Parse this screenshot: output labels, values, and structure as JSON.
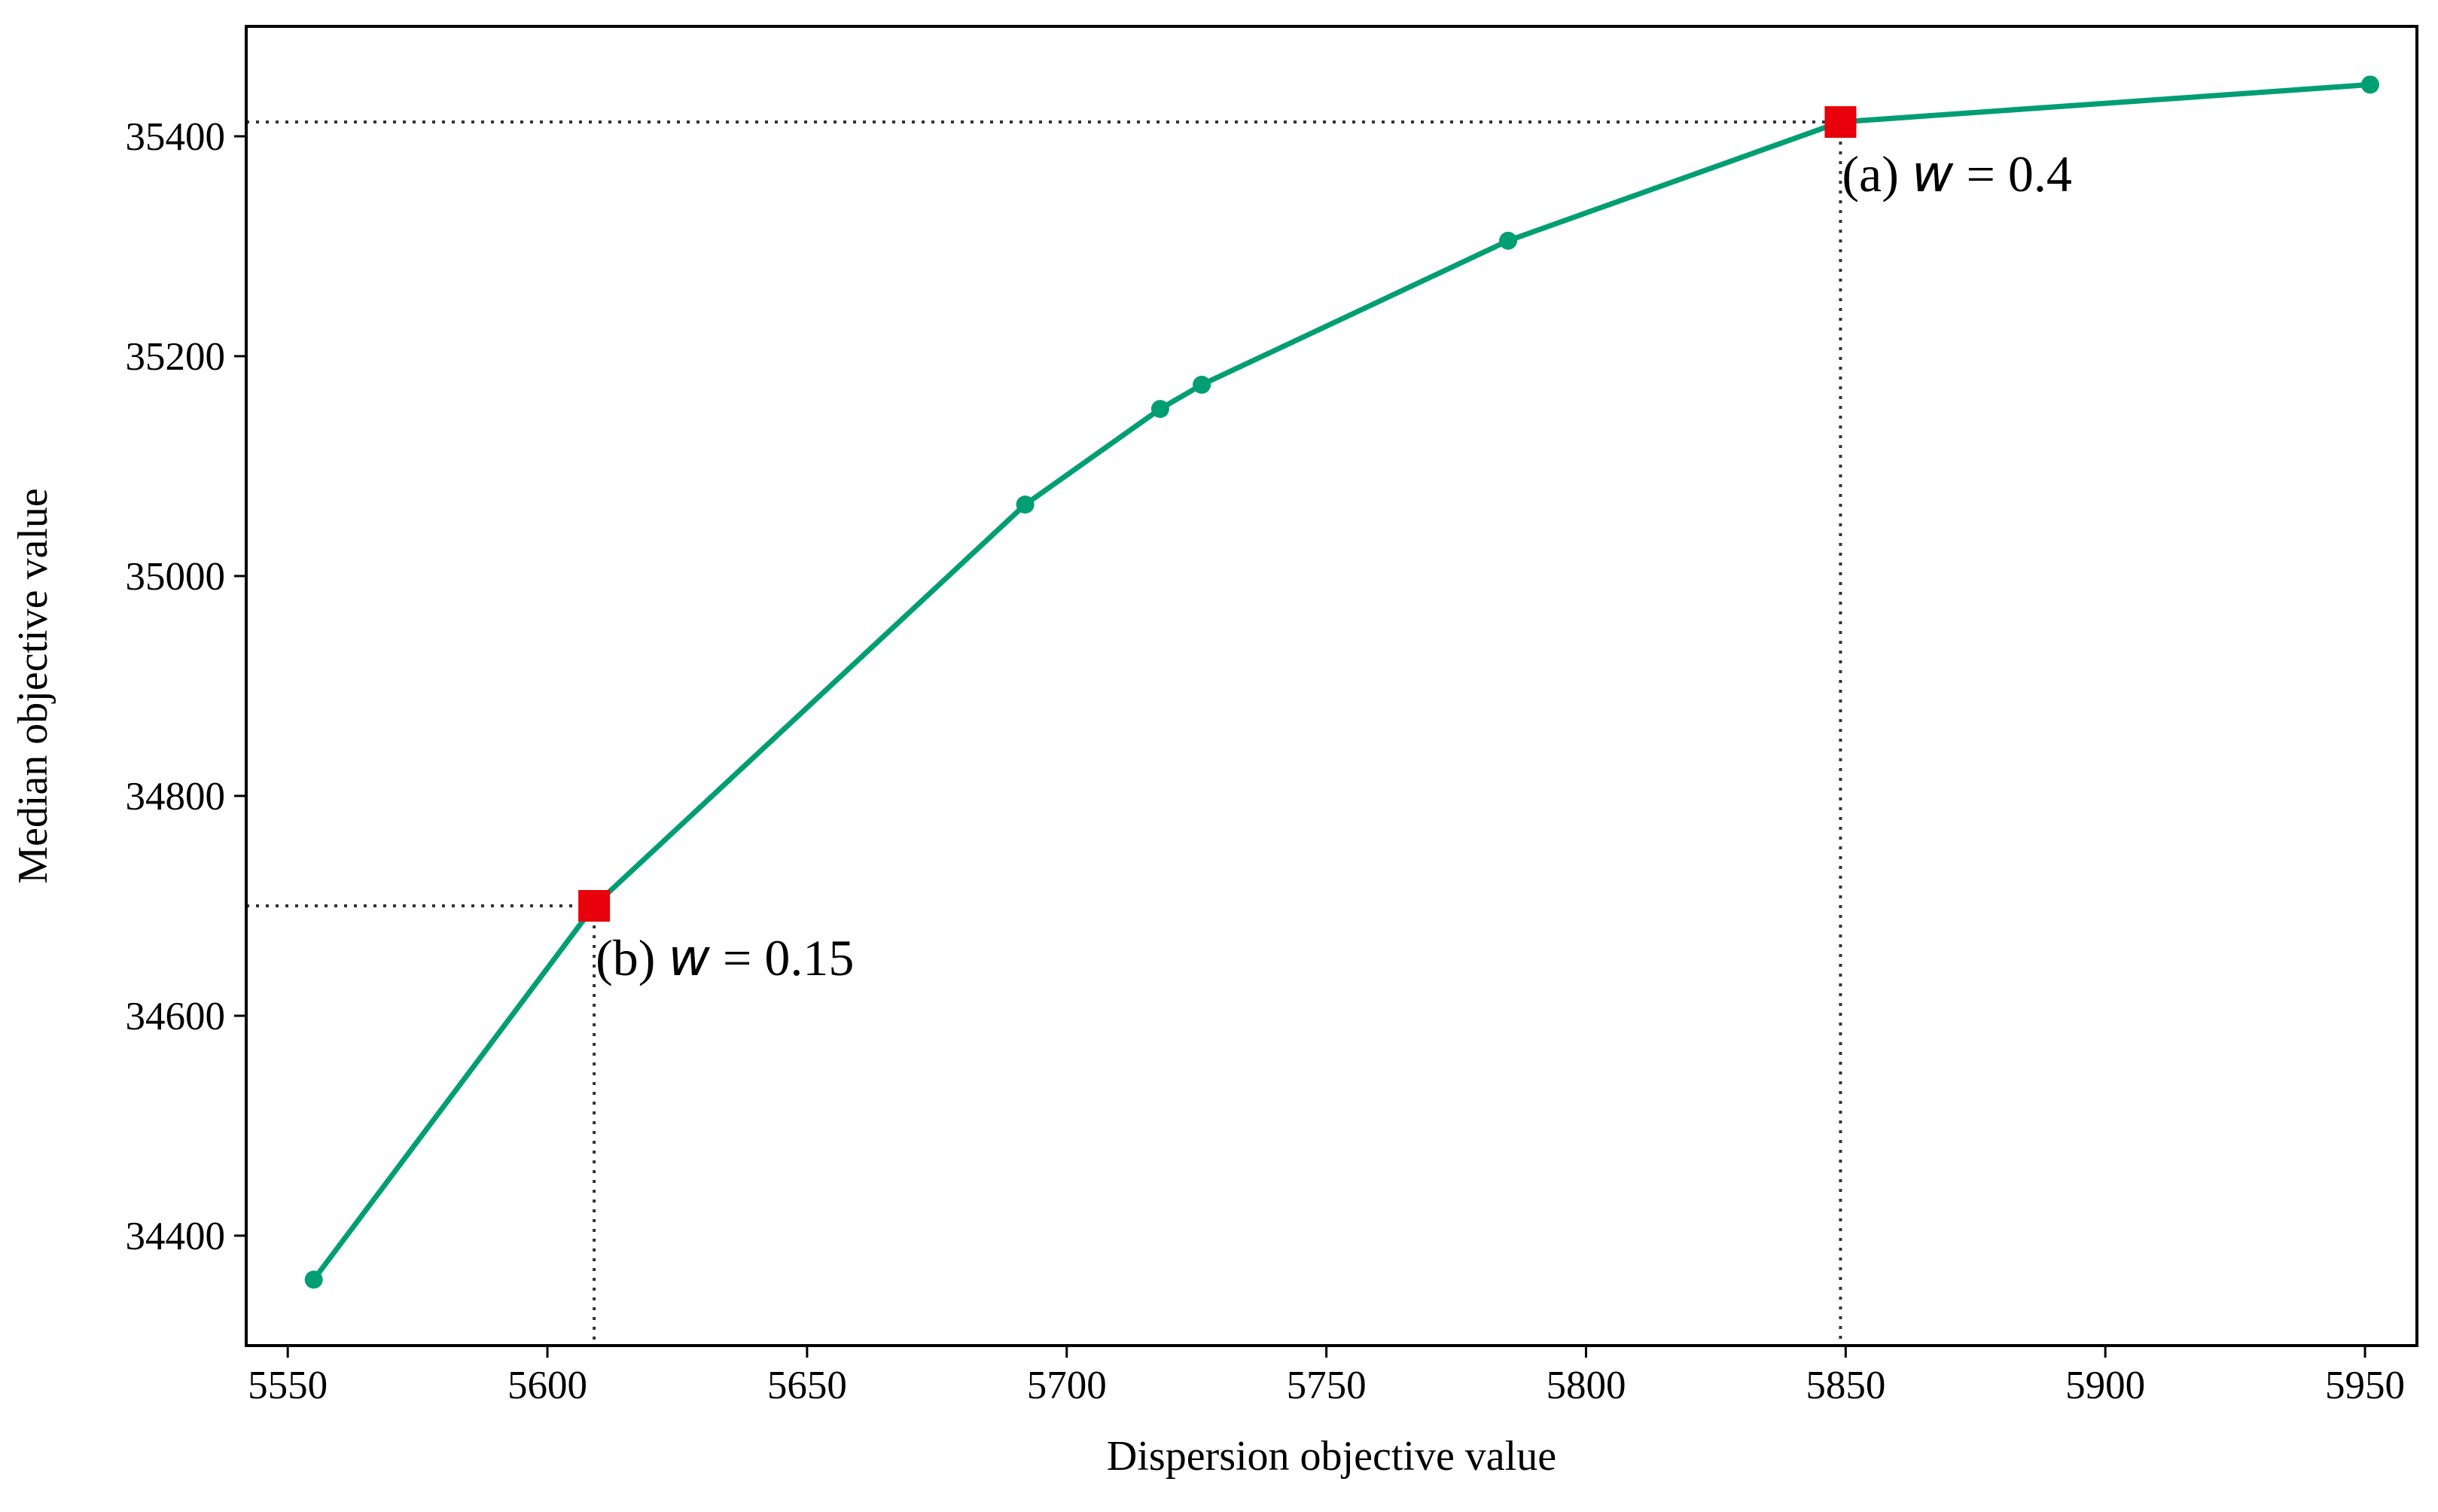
{
  "chart_data": {
    "type": "line",
    "xlabel": "Dispersion objective value",
    "ylabel": "Median objective value",
    "xlim": [
      5542,
      5960
    ],
    "ylim": [
      34300,
      35500
    ],
    "xticks": [
      5550,
      5600,
      5650,
      5700,
      5750,
      5800,
      5850,
      5900,
      5950
    ],
    "yticks": [
      34400,
      34600,
      34800,
      35000,
      35200,
      35400
    ],
    "grid": false,
    "series": [
      {
        "color": "#009e73",
        "marker": "circle",
        "x": [
          5555,
          5609,
          5692,
          5718,
          5726,
          5785,
          5849,
          5951
        ],
        "y": [
          34360,
          34700,
          35065,
          35152,
          35174,
          35305,
          35413,
          35447
        ]
      }
    ],
    "highlights": [
      {
        "x": 5849,
        "y": 35413,
        "color": "#e8000b",
        "label_prefix": "(a) ",
        "label_var": "w",
        "label_suffix": " = 0.4"
      },
      {
        "x": 5609,
        "y": 34700,
        "color": "#e8000b",
        "label_prefix": "(b) ",
        "label_var": "w",
        "label_suffix": " = 0.15"
      }
    ]
  }
}
